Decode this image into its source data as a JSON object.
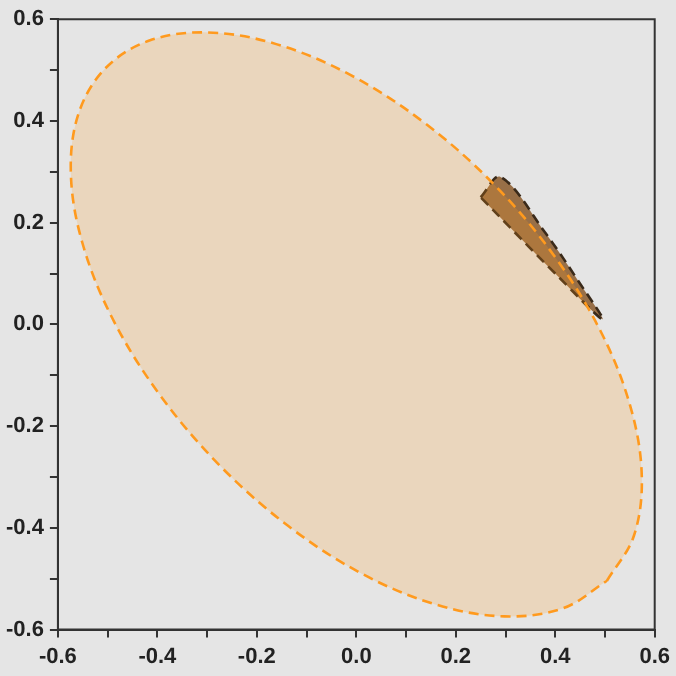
{
  "chart_data": {
    "type": "area",
    "xlim": [
      -0.6,
      0.6
    ],
    "ylim": [
      -0.6,
      0.6
    ],
    "xticks": [
      -0.6,
      {
        "value": -0.5,
        "label": null
      },
      -0.4,
      {
        "value": -0.3,
        "label": null
      },
      -0.2,
      {
        "value": -0.1,
        "label": null
      },
      {
        "value": 0,
        "label": "0.0"
      },
      {
        "value": 0.1,
        "label": null
      },
      0.2,
      {
        "value": 0.3,
        "label": null
      },
      0.4,
      {
        "value": 0.5,
        "label": null
      },
      0.6
    ],
    "yticks": [
      -0.6,
      {
        "value": -0.5,
        "label": null
      },
      -0.4,
      {
        "value": -0.3,
        "label": null
      },
      -0.2,
      {
        "value": -0.1,
        "label": null
      },
      {
        "value": 0,
        "label": "0.0"
      },
      {
        "value": 0.1,
        "label": null
      },
      0.2,
      {
        "value": 0.3,
        "label": null
      },
      0.4,
      {
        "value": 0.5,
        "label": null
      },
      0.6
    ],
    "grid": false,
    "legend": false,
    "marker": "none",
    "line_style": "dashed",
    "series": [
      {
        "color": "#ff9a1e",
        "x": [
          0.504,
          0.558,
          0.574,
          0.551,
          0.491,
          0.397,
          0.276,
          0.136,
          -0.013,
          -0.161,
          -0.298,
          -0.416,
          -0.504,
          -0.558,
          -0.574,
          -0.551,
          -0.491,
          -0.397,
          -0.276,
          -0.136,
          0.013,
          0.161,
          0.298,
          0.416,
          0.504
        ],
        "values": [
          -0.504,
          -0.416,
          -0.298,
          -0.161,
          -0.013,
          0.136,
          0.276,
          0.397,
          0.491,
          0.551,
          0.574,
          0.558,
          0.504,
          0.416,
          0.298,
          0.161,
          0.013,
          -0.136,
          -0.276,
          -0.397,
          -0.491,
          -0.551,
          -0.574,
          -0.558,
          -0.504
        ]
      },
      {
        "color": "#8b5a2b",
        "x": [
          0.25,
          0.29,
          0.38,
          0.45,
          0.495,
          0.4,
          0.25
        ],
        "values": [
          0.25,
          0.29,
          0.18,
          0.08,
          0.01,
          0.1,
          0.25
        ]
      }
    ]
  }
}
